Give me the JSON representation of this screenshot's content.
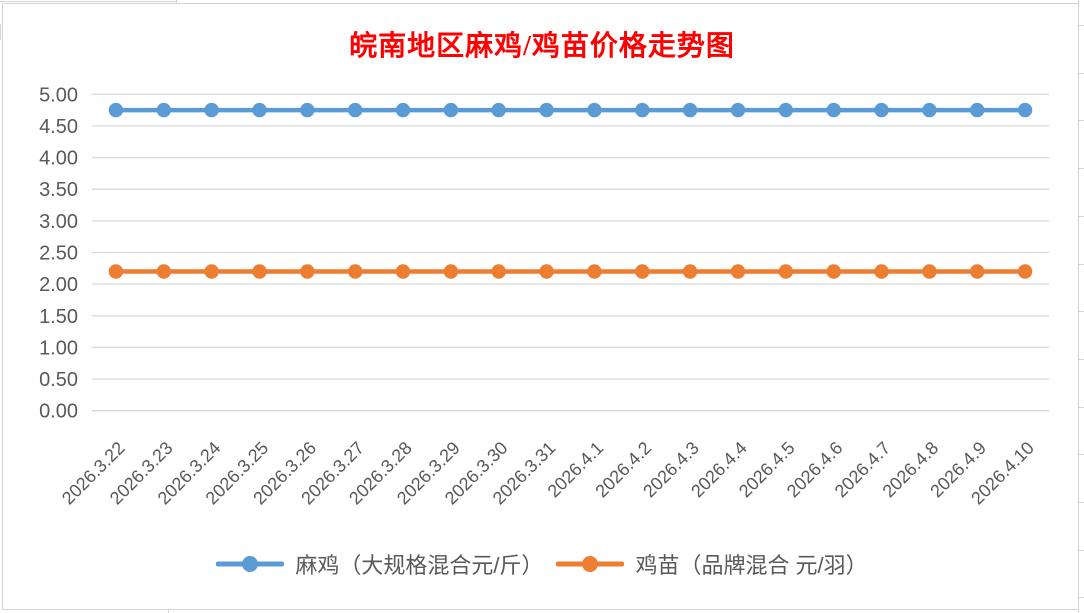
{
  "chart_data": {
    "type": "line",
    "title": "皖南地区麻鸡/鸡苗价格走势图",
    "title_color": "#ff0000",
    "categories": [
      "2026.3.22",
      "2026.3.23",
      "2026.3.24",
      "2026.3.25",
      "2026.3.26",
      "2026.3.27",
      "2026.3.28",
      "2026.3.29",
      "2026.3.30",
      "2026.3.31",
      "2026.4.1",
      "2026.4.2",
      "2026.4.3",
      "2026.4.4",
      "2026.4.5",
      "2026.4.6",
      "2026.4.7",
      "2026.4.8",
      "2026.4.9",
      "2026.4.10"
    ],
    "series": [
      {
        "name": "麻鸡（大规格混合元/斤）",
        "color": "#5b9bd5",
        "values": [
          4.75,
          4.75,
          4.75,
          4.75,
          4.75,
          4.75,
          4.75,
          4.75,
          4.75,
          4.75,
          4.75,
          4.75,
          4.75,
          4.75,
          4.75,
          4.75,
          4.75,
          4.75,
          4.75,
          4.75
        ]
      },
      {
        "name": "鸡苗（品牌混合 元/羽）",
        "color": "#ed7d31",
        "values": [
          2.2,
          2.2,
          2.2,
          2.2,
          2.2,
          2.2,
          2.2,
          2.2,
          2.2,
          2.2,
          2.2,
          2.2,
          2.2,
          2.2,
          2.2,
          2.2,
          2.2,
          2.2,
          2.2,
          2.2
        ]
      }
    ],
    "xlabel": "",
    "ylabel": "",
    "ylim": [
      0,
      5
    ],
    "ytick_step": 0.5,
    "ytick_labels": [
      "0.00",
      "0.50",
      "1.00",
      "1.50",
      "2.00",
      "2.50",
      "3.00",
      "3.50",
      "4.00",
      "4.50",
      "5.00"
    ],
    "grid": true,
    "legend_position": "bottom",
    "axis_label_color": "#595959",
    "gridline_color": "#d9d9d9"
  },
  "sheet": {
    "gridline_color": "#d6d6d6",
    "chart_border_color": "#d3d3d3"
  }
}
